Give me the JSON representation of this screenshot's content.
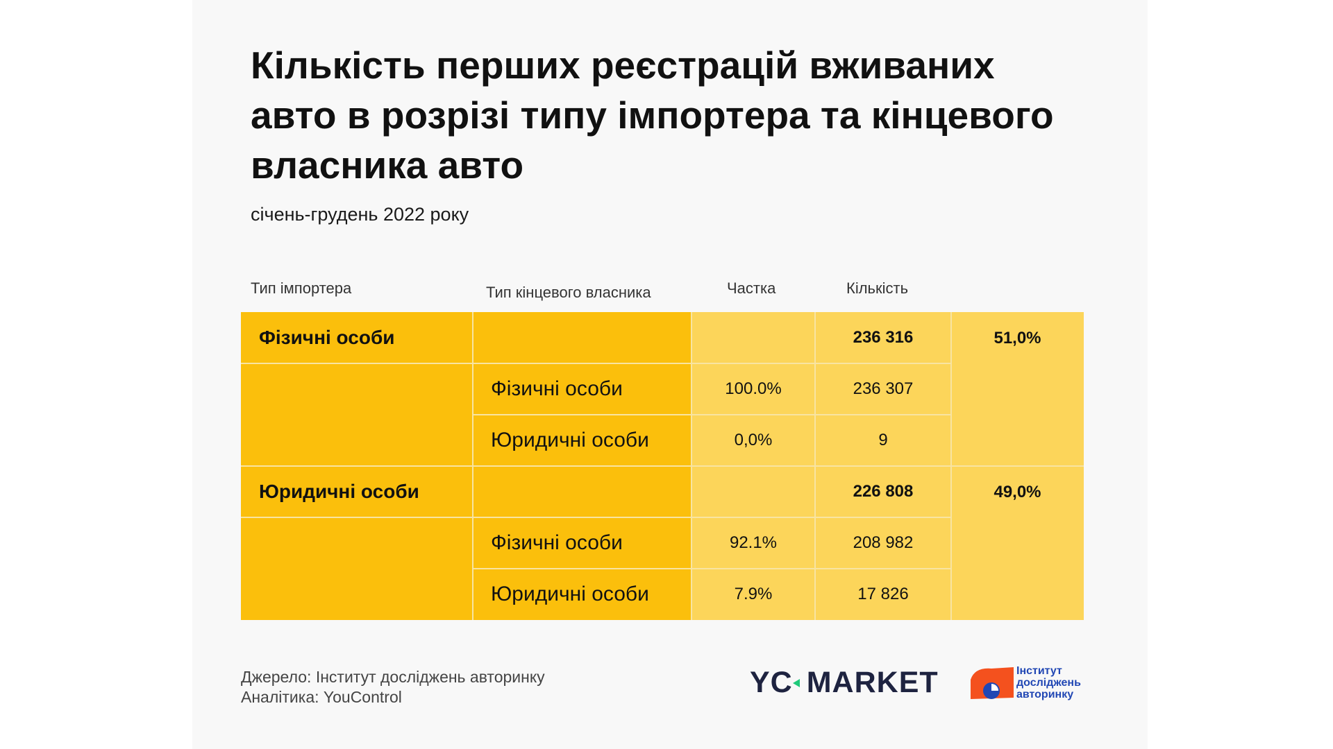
{
  "title": "Кількість перших реєстрацій вживаних авто в розрізі типу імпортера та кінцевого власника авто",
  "subtitle": "січень-грудень 2022 року",
  "columns": {
    "importer": "Тип імпортера",
    "owner": "Тип кінцевого власника",
    "share": "Частка",
    "count": "Кількість"
  },
  "chart_data": {
    "type": "table",
    "headers": [
      "Тип імпортера",
      "Тип кінцевого власника",
      "Частка",
      "Кількість"
    ],
    "groups": [
      {
        "importer": "Фізичні особи",
        "total": "236  316",
        "total_share": "51,0%",
        "rows": [
          {
            "owner": "Фізичні особи",
            "share": "100.0%",
            "count": "236 307"
          },
          {
            "owner": "Юридичні особи",
            "share": "0,0%",
            "count": "9"
          }
        ]
      },
      {
        "importer": "Юридичні особи",
        "total": "226 808",
        "total_share": "49,0%",
        "rows": [
          {
            "owner": "Фізичні особи",
            "share": "92.1%",
            "count": "208 982"
          },
          {
            "owner": "Юридичні особи",
            "share": "7.9%",
            "count": "17 826"
          }
        ]
      }
    ]
  },
  "footer": {
    "source": "Джерело: Інститут досліджень авторинку",
    "analytics": "Аналітика: YouControl"
  },
  "logos": {
    "youcontrol": {
      "prefix": "YC",
      "word": "MARKET",
      "accent": "#1fc97a"
    },
    "institute": {
      "line1": "Інститут",
      "line2": "досліджень",
      "line3": "авторинку",
      "color": "#2147b4",
      "accent": "#f4511e"
    }
  },
  "colors": {
    "dark_yellow": "#fbbf0c",
    "light_yellow": "#fcd55a",
    "background": "#f8f8f8"
  }
}
